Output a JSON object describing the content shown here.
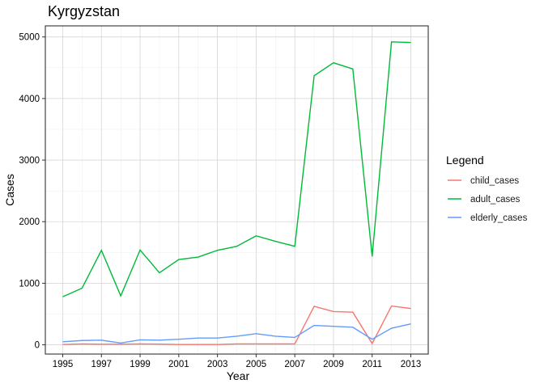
{
  "chart_data": {
    "type": "line",
    "title": "Kyrgyzstan",
    "xlabel": "Year",
    "ylabel": "Cases",
    "x": [
      1995,
      1996,
      1997,
      1998,
      1999,
      2000,
      2001,
      2002,
      2003,
      2004,
      2005,
      2006,
      2007,
      2008,
      2009,
      2010,
      2011,
      2012,
      2013
    ],
    "xlim": [
      1994.1,
      2013.9
    ],
    "ylim": [
      -150,
      5180
    ],
    "x_ticks": [
      1995,
      1997,
      1999,
      2001,
      2003,
      2005,
      2007,
      2009,
      2011,
      2013
    ],
    "x_tick_labels": [
      "1995",
      "1997",
      "1999",
      "2001",
      "2003",
      "2005",
      "2007",
      "2009",
      "2011",
      "2013"
    ],
    "y_ticks": [
      0,
      1000,
      2000,
      3000,
      4000,
      5000
    ],
    "y_tick_labels": [
      "0",
      "1000",
      "2000",
      "3000",
      "4000",
      "5000"
    ],
    "grid": true,
    "legend": {
      "title": "Legend",
      "position": "right"
    },
    "series": [
      {
        "name": "child_cases",
        "color": "#F8766D",
        "values": [
          5,
          15,
          10,
          10,
          15,
          12,
          5,
          5,
          5,
          15,
          15,
          15,
          15,
          625,
          540,
          530,
          20,
          630,
          590
        ]
      },
      {
        "name": "adult_cases",
        "color": "#00BA38",
        "values": [
          780,
          920,
          1535,
          795,
          1540,
          1170,
          1385,
          1425,
          1535,
          1600,
          1770,
          1680,
          1600,
          4370,
          4580,
          4480,
          1435,
          4920,
          4910
        ]
      },
      {
        "name": "elderly_cases",
        "color": "#619CFF",
        "values": [
          50,
          70,
          75,
          30,
          80,
          75,
          90,
          110,
          110,
          140,
          180,
          140,
          120,
          315,
          300,
          285,
          90,
          270,
          340
        ]
      }
    ]
  }
}
